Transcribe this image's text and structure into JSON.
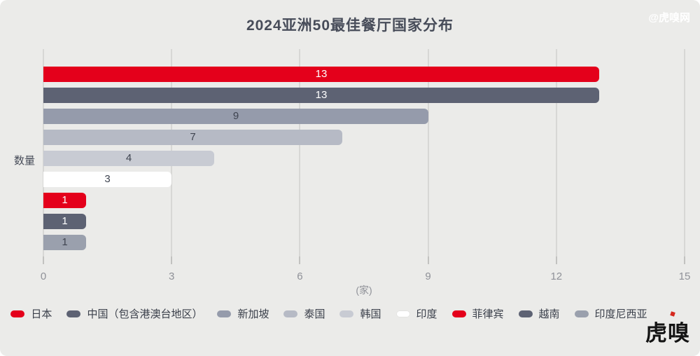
{
  "title": "2024亚洲50最佳餐厅国家分布",
  "watermark": "@虎嗅网",
  "logo_text": "虎嗅",
  "axis": {
    "y_title": "数量",
    "x_unit": "(家)"
  },
  "chart_data": {
    "type": "bar",
    "orientation": "horizontal",
    "title": "2024亚洲50最佳餐厅国家分布",
    "ylabel": "数量",
    "xlabel": "(家)",
    "xlim": [
      0,
      15
    ],
    "x_ticks": [
      0,
      3,
      6,
      9,
      12,
      15
    ],
    "grid": true,
    "legend_position": "bottom",
    "categories": [
      "日本",
      "中国（包含港澳台地区）",
      "新加坡",
      "泰国",
      "韩国",
      "印度",
      "菲律宾",
      "越南",
      "印度尼西亚"
    ],
    "values": [
      13,
      13,
      9,
      7,
      4,
      3,
      1,
      1,
      1
    ],
    "bar_colors": [
      "#e4001b",
      "#5d6273",
      "#959bab",
      "#b6bac5",
      "#c8cbd3",
      "#ffffff",
      "#e4001b",
      "#5d6273",
      "#9aa0ad"
    ],
    "value_label_colors": [
      "#ffffff",
      "#ffffff",
      "#3f4450",
      "#3f4450",
      "#3f4450",
      "#3f4450",
      "#ffffff",
      "#ffffff",
      "#3f4450"
    ]
  },
  "colors": {
    "background": "#ebebe9",
    "gridline": "#d7d7d5",
    "title_text": "#474c59",
    "axis_text": "#8f9198",
    "accent_red": "#e4001b"
  }
}
